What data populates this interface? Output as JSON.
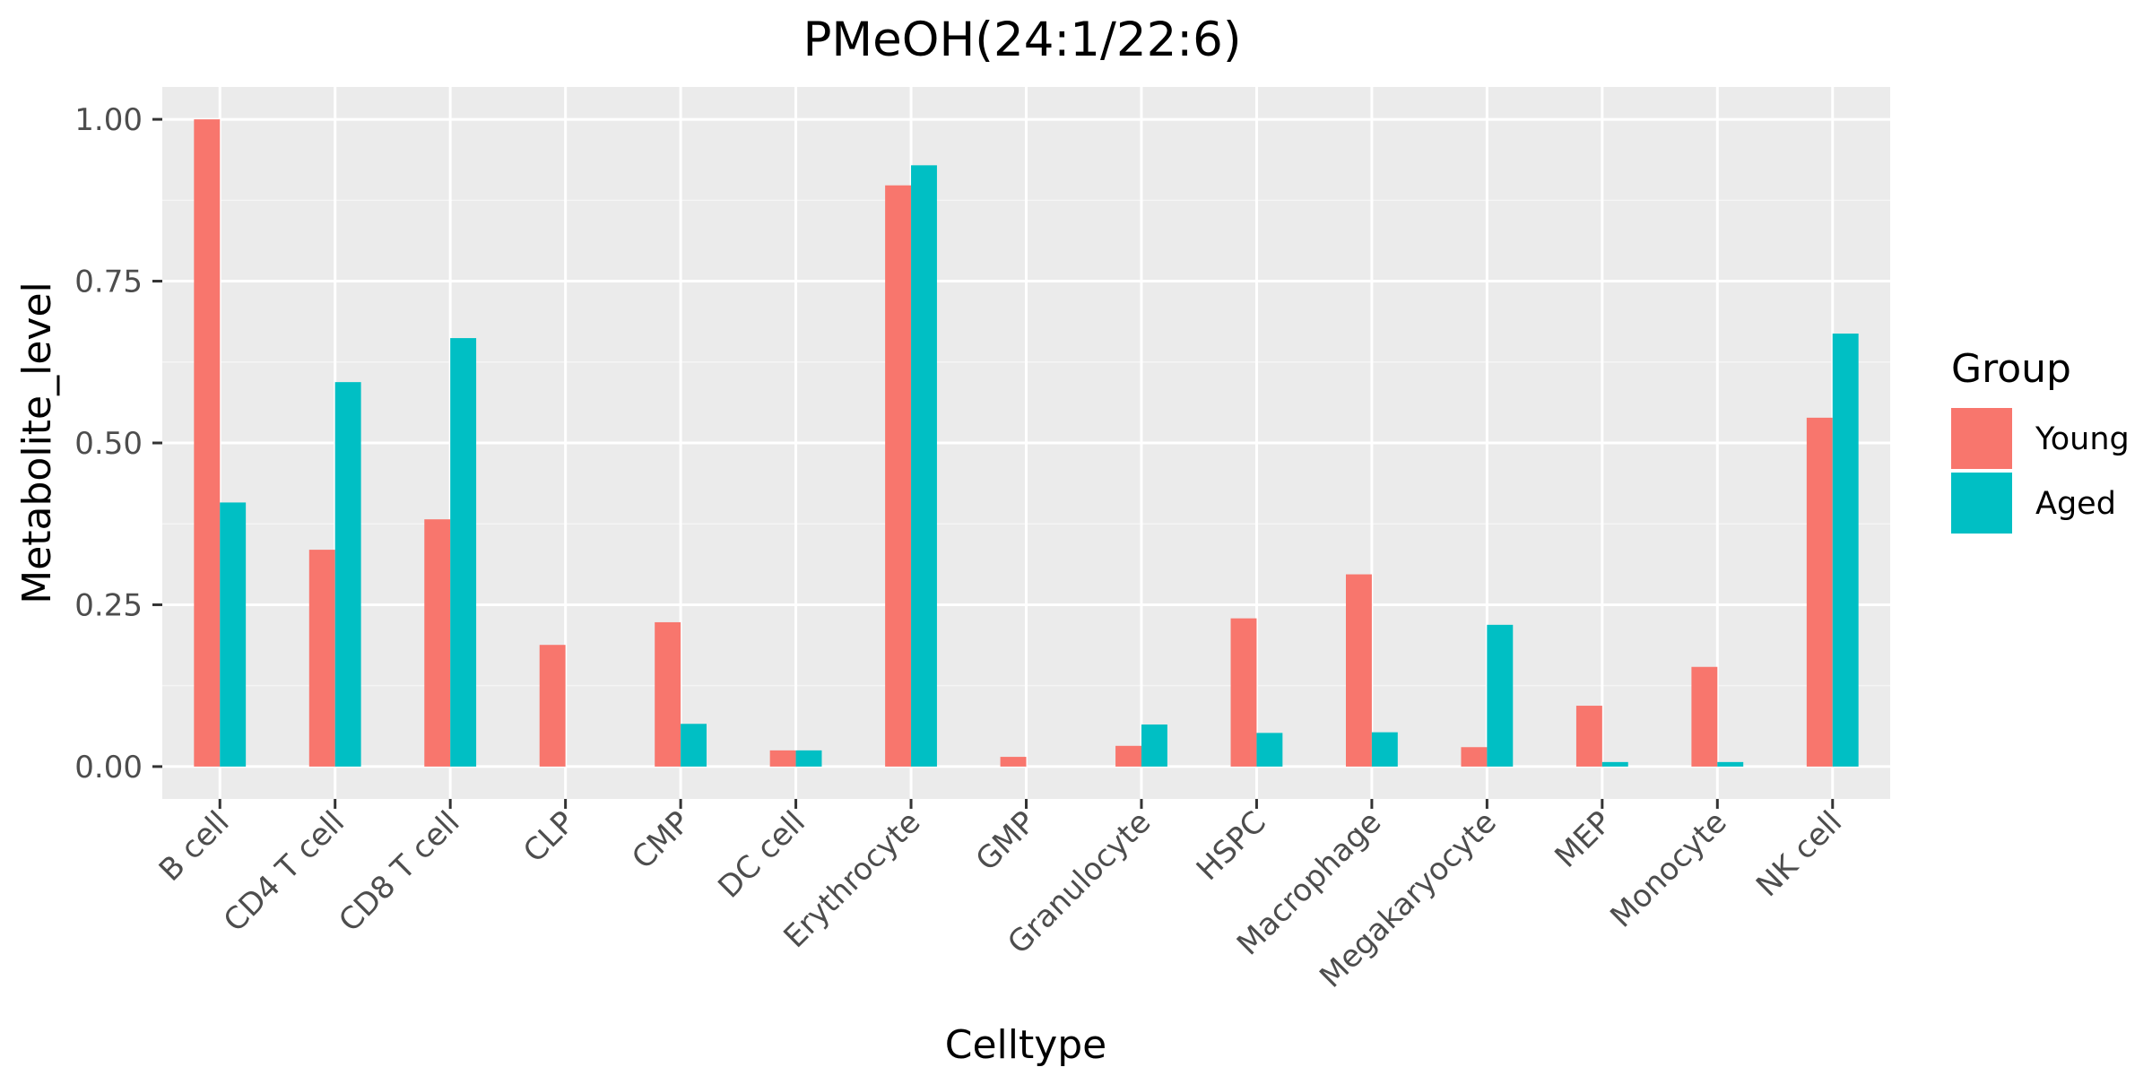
{
  "chart_data": {
    "type": "bar",
    "title": "PMeOH(24:1/22:6)",
    "xlabel": "Celltype",
    "ylabel": "Metabolite_level",
    "ylim": [
      -0.05,
      1.05
    ],
    "yticks": [
      0.0,
      0.25,
      0.5,
      0.75,
      1.0
    ],
    "ytick_labels": [
      "0.00",
      "0.25",
      "0.50",
      "0.75",
      "1.00"
    ],
    "categories": [
      "B cell",
      "CD4 T cell",
      "CD8 T cell",
      "CLP",
      "CMP",
      "DC cell",
      "Erythrocyte",
      "GMP",
      "Granulocyte",
      "HSPC",
      "Macrophage",
      "Megakaryocyte",
      "MEP",
      "Monocyte",
      "NK cell"
    ],
    "series": [
      {
        "name": "Young",
        "color": "#F8766D",
        "values": [
          1.0,
          0.335,
          0.382,
          0.188,
          0.223,
          0.025,
          0.898,
          0.015,
          0.032,
          0.229,
          0.297,
          0.03,
          0.094,
          0.154,
          0.539
        ]
      },
      {
        "name": "Aged",
        "color": "#00BFC4",
        "values": [
          0.408,
          0.594,
          0.662,
          0.0,
          0.066,
          0.025,
          0.929,
          0.0,
          0.065,
          0.052,
          0.053,
          0.219,
          0.007,
          0.007,
          0.669
        ]
      }
    ],
    "legend": {
      "title": "Group",
      "position": "right"
    },
    "grid": true,
    "colors": {
      "panel_background": "#EBEBEB",
      "grid_major": "#FFFFFF",
      "grid_minor": "#F5F5F5",
      "tick_text": "#4D4D4D",
      "tick_marks": "#333333"
    }
  }
}
